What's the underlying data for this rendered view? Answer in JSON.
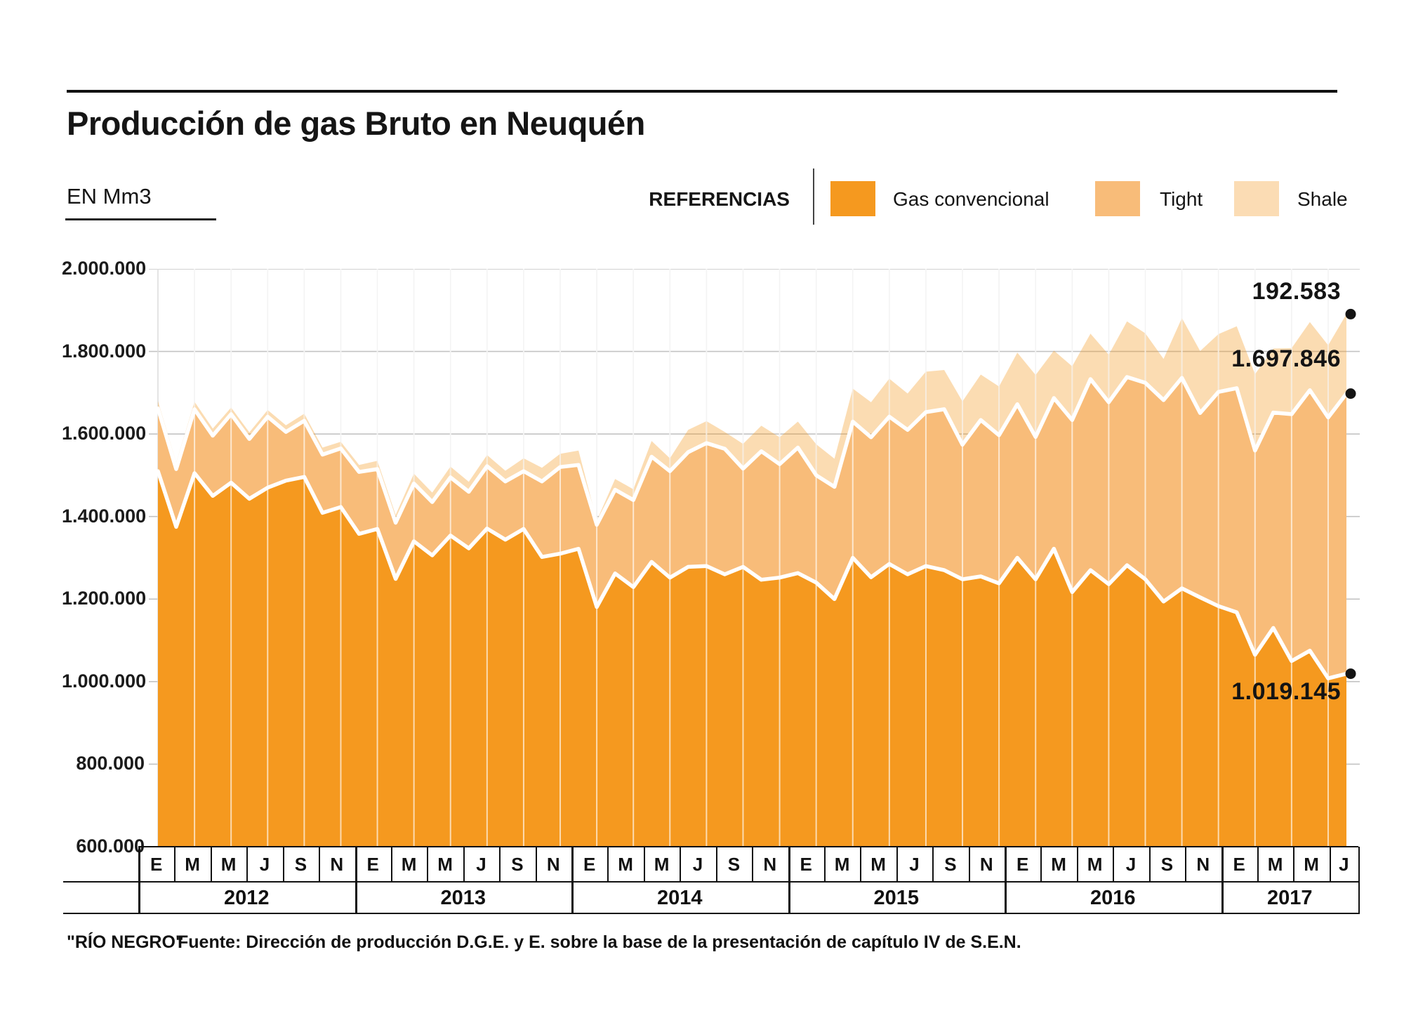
{
  "header": {
    "title": "Producción de gas Bruto en Neuquén",
    "unit_label": "EN Mm3",
    "legend_title": "REFERENCIAS"
  },
  "legend": {
    "items": [
      {
        "label": "Gas convencional",
        "color": "#F5991F"
      },
      {
        "label": "Tight",
        "color": "#F8BC79"
      },
      {
        "label": "Shale",
        "color": "#FBDCB4"
      }
    ],
    "shale_fill": "rgba(244,153,30,0.34)"
  },
  "annotations": {
    "shale_last": "192.583",
    "conv_plus_tight_last": "1.697.846",
    "conv_last": "1.019.145"
  },
  "footer": {
    "credit": "\"RÍO NEGRO\"",
    "source": "Fuente: Dirección de producción D.G.E. y E. sobre la base de la presentación de capítulo IV de S.E.N."
  },
  "y_axis": {
    "tick_labels": [
      "2.000.000",
      "1.800.000",
      "1.600.000",
      "1.400.000",
      "1.200.000",
      "1.000.000",
      "800.000",
      "600.000"
    ],
    "min": 600000,
    "max": 2000000
  },
  "x_axis": {
    "years": [
      "2012",
      "2013",
      "2014",
      "2015",
      "2016",
      "2017"
    ],
    "month_labels_full_year": [
      "E",
      "M",
      "M",
      "J",
      "S",
      "N"
    ],
    "month_labels_2017": [
      "E",
      "M",
      "M",
      "J"
    ]
  },
  "chart_data": {
    "type": "area",
    "stacked": true,
    "title": "Producción de gas Bruto en Neuquén",
    "ylabel": "EN Mm3",
    "ylim": [
      600000,
      2000000
    ],
    "grid": true,
    "legend_position": "top-right",
    "x": [
      "2012-01",
      "2012-02",
      "2012-03",
      "2012-04",
      "2012-05",
      "2012-06",
      "2012-07",
      "2012-08",
      "2012-09",
      "2012-10",
      "2012-11",
      "2012-12",
      "2013-01",
      "2013-02",
      "2013-03",
      "2013-04",
      "2013-05",
      "2013-06",
      "2013-07",
      "2013-08",
      "2013-09",
      "2013-10",
      "2013-11",
      "2013-12",
      "2014-01",
      "2014-02",
      "2014-03",
      "2014-04",
      "2014-05",
      "2014-06",
      "2014-07",
      "2014-08",
      "2014-09",
      "2014-10",
      "2014-11",
      "2014-12",
      "2015-01",
      "2015-02",
      "2015-03",
      "2015-04",
      "2015-05",
      "2015-06",
      "2015-07",
      "2015-08",
      "2015-09",
      "2015-10",
      "2015-11",
      "2015-12",
      "2016-01",
      "2016-02",
      "2016-03",
      "2016-04",
      "2016-05",
      "2016-06",
      "2016-07",
      "2016-08",
      "2016-09",
      "2016-10",
      "2016-11",
      "2016-12",
      "2017-01",
      "2017-02",
      "2017-03",
      "2017-04",
      "2017-05",
      "2017-06"
    ],
    "series": [
      {
        "name": "Gas convencional",
        "values": [
          1510000,
          1375000,
          1505000,
          1450000,
          1482000,
          1443000,
          1470000,
          1487000,
          1496000,
          1409000,
          1423000,
          1358000,
          1370000,
          1249000,
          1340000,
          1306000,
          1354000,
          1323000,
          1371000,
          1344000,
          1370000,
          1302000,
          1310000,
          1322000,
          1181000,
          1262000,
          1229000,
          1290000,
          1252000,
          1278000,
          1280000,
          1260000,
          1278000,
          1247000,
          1252000,
          1263000,
          1240000,
          1200000,
          1300000,
          1253000,
          1285000,
          1260000,
          1280000,
          1270000,
          1248000,
          1255000,
          1238000,
          1300000,
          1248000,
          1322000,
          1217000,
          1270000,
          1236000,
          1282000,
          1248000,
          1194000,
          1226000,
          1204000,
          1183000,
          1168000,
          1065000,
          1130000,
          1050000,
          1075000,
          1008000,
          1019145
        ]
      },
      {
        "name": "Tight",
        "values": [
          152000,
          140000,
          155000,
          146000,
          166000,
          145000,
          172000,
          118000,
          136000,
          141000,
          142000,
          150000,
          145000,
          136000,
          140000,
          129000,
          141000,
          137000,
          151000,
          141000,
          140000,
          183000,
          210000,
          203000,
          199000,
          203000,
          211000,
          255000,
          258000,
          278000,
          298000,
          304000,
          238000,
          311000,
          275000,
          304000,
          260000,
          272000,
          330000,
          339000,
          357000,
          350000,
          373000,
          390000,
          326000,
          379000,
          359000,
          372000,
          345000,
          365000,
          417000,
          463000,
          441000,
          456000,
          476000,
          488000,
          510000,
          447000,
          519000,
          543000,
          495000,
          522000,
          598000,
          631000,
          632000,
          678701
        ]
      },
      {
        "name": "Shale",
        "values": [
          18000,
          16000,
          18000,
          17000,
          16000,
          16000,
          16000,
          16000,
          17000,
          17000,
          16000,
          17000,
          20000,
          19000,
          24000,
          23000,
          26000,
          24000,
          27000,
          26000,
          31000,
          33000,
          32000,
          35000,
          10000,
          26000,
          26000,
          38000,
          31000,
          54000,
          53000,
          41000,
          60000,
          62000,
          65000,
          63000,
          75000,
          68000,
          80000,
          85000,
          92000,
          88000,
          98000,
          95000,
          105000,
          110000,
          118000,
          125000,
          150000,
          115000,
          130000,
          110000,
          115000,
          135000,
          120000,
          100000,
          145000,
          150000,
          140000,
          150000,
          185000,
          155000,
          160000,
          165000,
          175000,
          192583
        ]
      }
    ],
    "annotated_last_values": {
      "conventional": 1019145,
      "conventional_plus_tight": 1697846,
      "shale": 192583
    }
  }
}
